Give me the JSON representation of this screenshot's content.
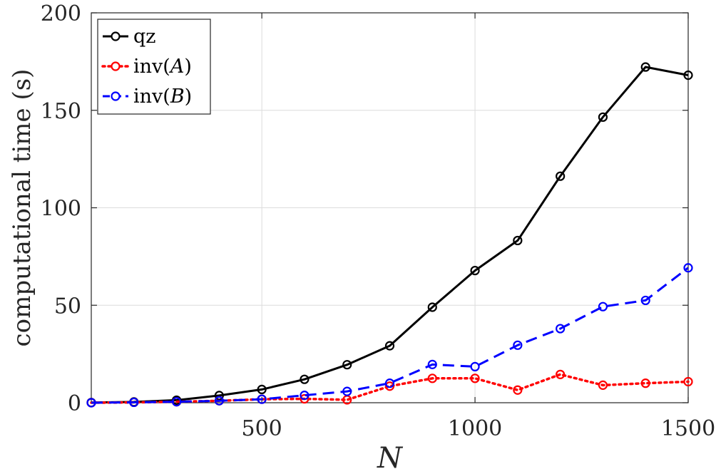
{
  "chart_data": {
    "type": "line",
    "xlabel": "N",
    "ylabel": "computational time (s)",
    "xlim": [
      100,
      1500
    ],
    "ylim": [
      0,
      200
    ],
    "xticks": [
      500,
      1000,
      1500
    ],
    "yticks": [
      0,
      50,
      100,
      150,
      200
    ],
    "grid": true,
    "legend_position": "top-left",
    "x": [
      100,
      200,
      300,
      400,
      500,
      600,
      700,
      800,
      900,
      1000,
      1100,
      1200,
      1300,
      1400,
      1500
    ],
    "series": [
      {
        "name": "qz",
        "color": "#000000",
        "linestyle": "solid",
        "values": [
          0.1,
          0.4,
          1.3,
          3.7,
          6.8,
          12.0,
          19.5,
          29.2,
          49.0,
          67.8,
          83.2,
          116.2,
          146.5,
          172.2,
          168.0
        ]
      },
      {
        "name": "inv(A)",
        "name_parts": [
          "inv(",
          "A",
          ")"
        ],
        "color": "#ff0000",
        "linestyle": "dotted",
        "values": [
          0.0,
          0.2,
          0.5,
          1.0,
          1.8,
          2.0,
          1.5,
          8.5,
          12.5,
          12.5,
          6.5,
          14.5,
          9.0,
          10.0,
          10.8
        ]
      },
      {
        "name": "inv(B)",
        "name_parts": [
          "inv(",
          "B",
          ")"
        ],
        "color": "#0000ff",
        "linestyle": "dashed",
        "values": [
          0.0,
          0.2,
          0.5,
          1.0,
          1.8,
          3.8,
          5.8,
          10.0,
          19.6,
          18.5,
          29.5,
          38.0,
          49.3,
          52.5,
          69.2
        ]
      }
    ]
  }
}
